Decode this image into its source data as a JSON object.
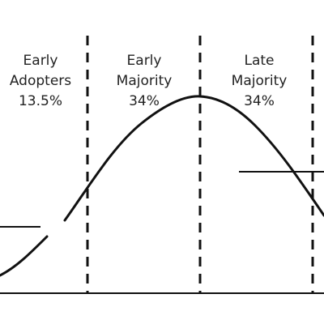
{
  "diagram": {
    "segments": [
      {
        "line1": "Early",
        "line2": "Adopters",
        "share": "13.5%"
      },
      {
        "line1": "Early",
        "line2": "Majority",
        "share": "34%"
      },
      {
        "line1": "Late",
        "line2": "Majority",
        "share": "34%"
      }
    ],
    "colors": {
      "line": "#111111",
      "text": "#222222",
      "background": "#ffffff"
    }
  }
}
